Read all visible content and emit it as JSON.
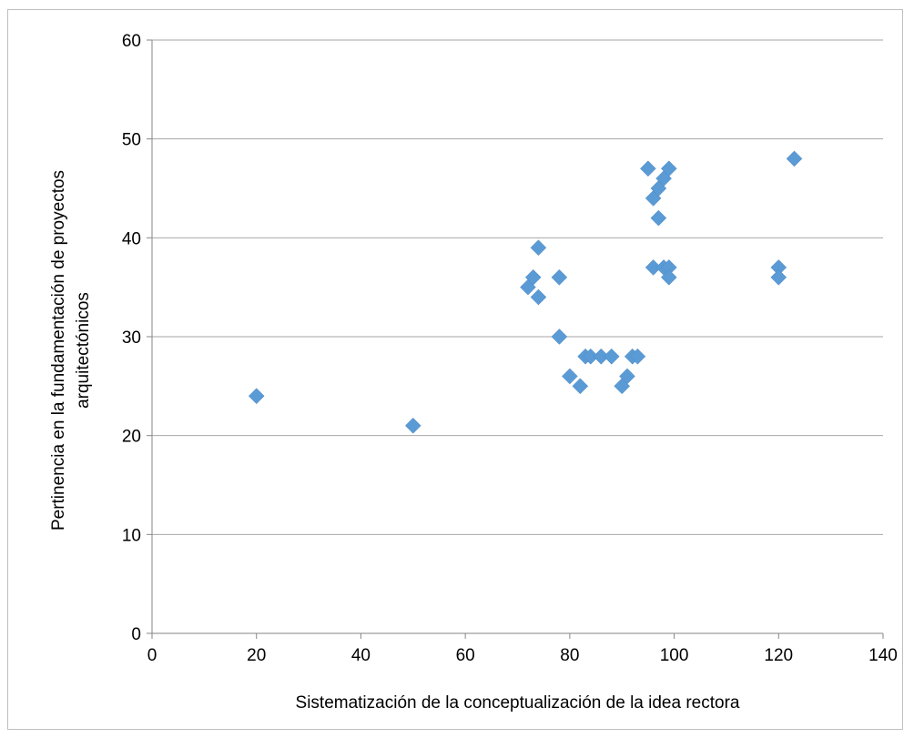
{
  "chart_data": {
    "type": "scatter",
    "title": "",
    "xlabel": "Sistematización de la conceptualización de la idea rectora",
    "ylabel_lines": [
      "Pertinencia en la fundamentación de proyectos",
      "arquitectónicos"
    ],
    "xlim": [
      0,
      140
    ],
    "ylim": [
      0,
      60
    ],
    "x_ticks": [
      0,
      20,
      40,
      60,
      80,
      100,
      120,
      140
    ],
    "y_ticks": [
      0,
      10,
      20,
      30,
      40,
      50,
      60
    ],
    "grid": "horizontal",
    "legend": "none",
    "marker": "diamond",
    "marker_color": "#5b9bd5",
    "grid_color": "#a6a6a6",
    "points": [
      {
        "x": 20,
        "y": 24
      },
      {
        "x": 50,
        "y": 21
      },
      {
        "x": 72,
        "y": 35
      },
      {
        "x": 73,
        "y": 36
      },
      {
        "x": 74,
        "y": 34
      },
      {
        "x": 74,
        "y": 39
      },
      {
        "x": 78,
        "y": 36
      },
      {
        "x": 78,
        "y": 30
      },
      {
        "x": 80,
        "y": 26
      },
      {
        "x": 82,
        "y": 25
      },
      {
        "x": 83,
        "y": 28
      },
      {
        "x": 84,
        "y": 28
      },
      {
        "x": 86,
        "y": 28
      },
      {
        "x": 88,
        "y": 28
      },
      {
        "x": 90,
        "y": 25
      },
      {
        "x": 91,
        "y": 26
      },
      {
        "x": 92,
        "y": 28
      },
      {
        "x": 93,
        "y": 28
      },
      {
        "x": 95,
        "y": 47
      },
      {
        "x": 96,
        "y": 44
      },
      {
        "x": 96,
        "y": 37
      },
      {
        "x": 97,
        "y": 45
      },
      {
        "x": 97,
        "y": 42
      },
      {
        "x": 98,
        "y": 46
      },
      {
        "x": 98,
        "y": 37
      },
      {
        "x": 99,
        "y": 47
      },
      {
        "x": 99,
        "y": 37
      },
      {
        "x": 99,
        "y": 36
      },
      {
        "x": 120,
        "y": 37
      },
      {
        "x": 120,
        "y": 36
      },
      {
        "x": 123,
        "y": 48
      }
    ]
  }
}
